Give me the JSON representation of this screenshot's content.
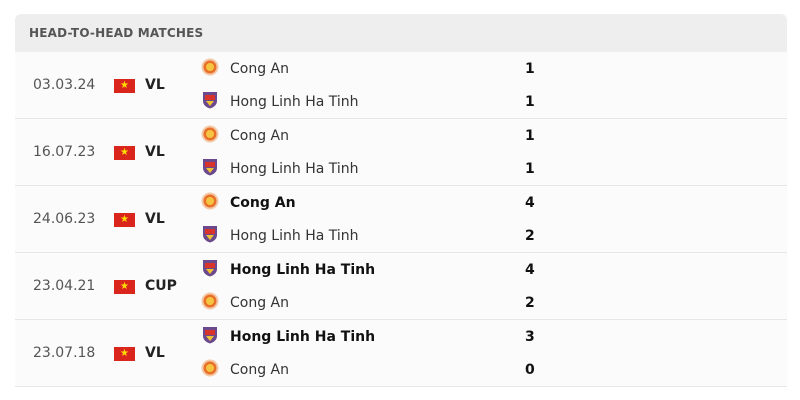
{
  "title": "HEAD-TO-HEAD MATCHES",
  "colors": {
    "flag": "#da251d",
    "star": "#ffdd00"
  },
  "matches": [
    {
      "date": "03.03.24",
      "competition": "VL",
      "home": {
        "name": "Cong An",
        "logo": "cong-an",
        "score": "1",
        "bold": false
      },
      "away": {
        "name": "Hong Linh Ha Tinh",
        "logo": "hong-linh",
        "score": "1",
        "bold": false
      }
    },
    {
      "date": "16.07.23",
      "competition": "VL",
      "home": {
        "name": "Cong An",
        "logo": "cong-an",
        "score": "1",
        "bold": false
      },
      "away": {
        "name": "Hong Linh Ha Tinh",
        "logo": "hong-linh",
        "score": "1",
        "bold": false
      }
    },
    {
      "date": "24.06.23",
      "competition": "VL",
      "home": {
        "name": "Cong An",
        "logo": "cong-an",
        "score": "4",
        "bold": true
      },
      "away": {
        "name": "Hong Linh Ha Tinh",
        "logo": "hong-linh",
        "score": "2",
        "bold": false
      }
    },
    {
      "date": "23.04.21",
      "competition": "CUP",
      "home": {
        "name": "Hong Linh Ha Tinh",
        "logo": "hong-linh",
        "score": "4",
        "bold": true
      },
      "away": {
        "name": "Cong An",
        "logo": "cong-an",
        "score": "2",
        "bold": false
      }
    },
    {
      "date": "23.07.18",
      "competition": "VL",
      "home": {
        "name": "Hong Linh Ha Tinh",
        "logo": "hong-linh",
        "score": "3",
        "bold": true
      },
      "away": {
        "name": "Cong An",
        "logo": "cong-an",
        "score": "0",
        "bold": false
      }
    }
  ]
}
